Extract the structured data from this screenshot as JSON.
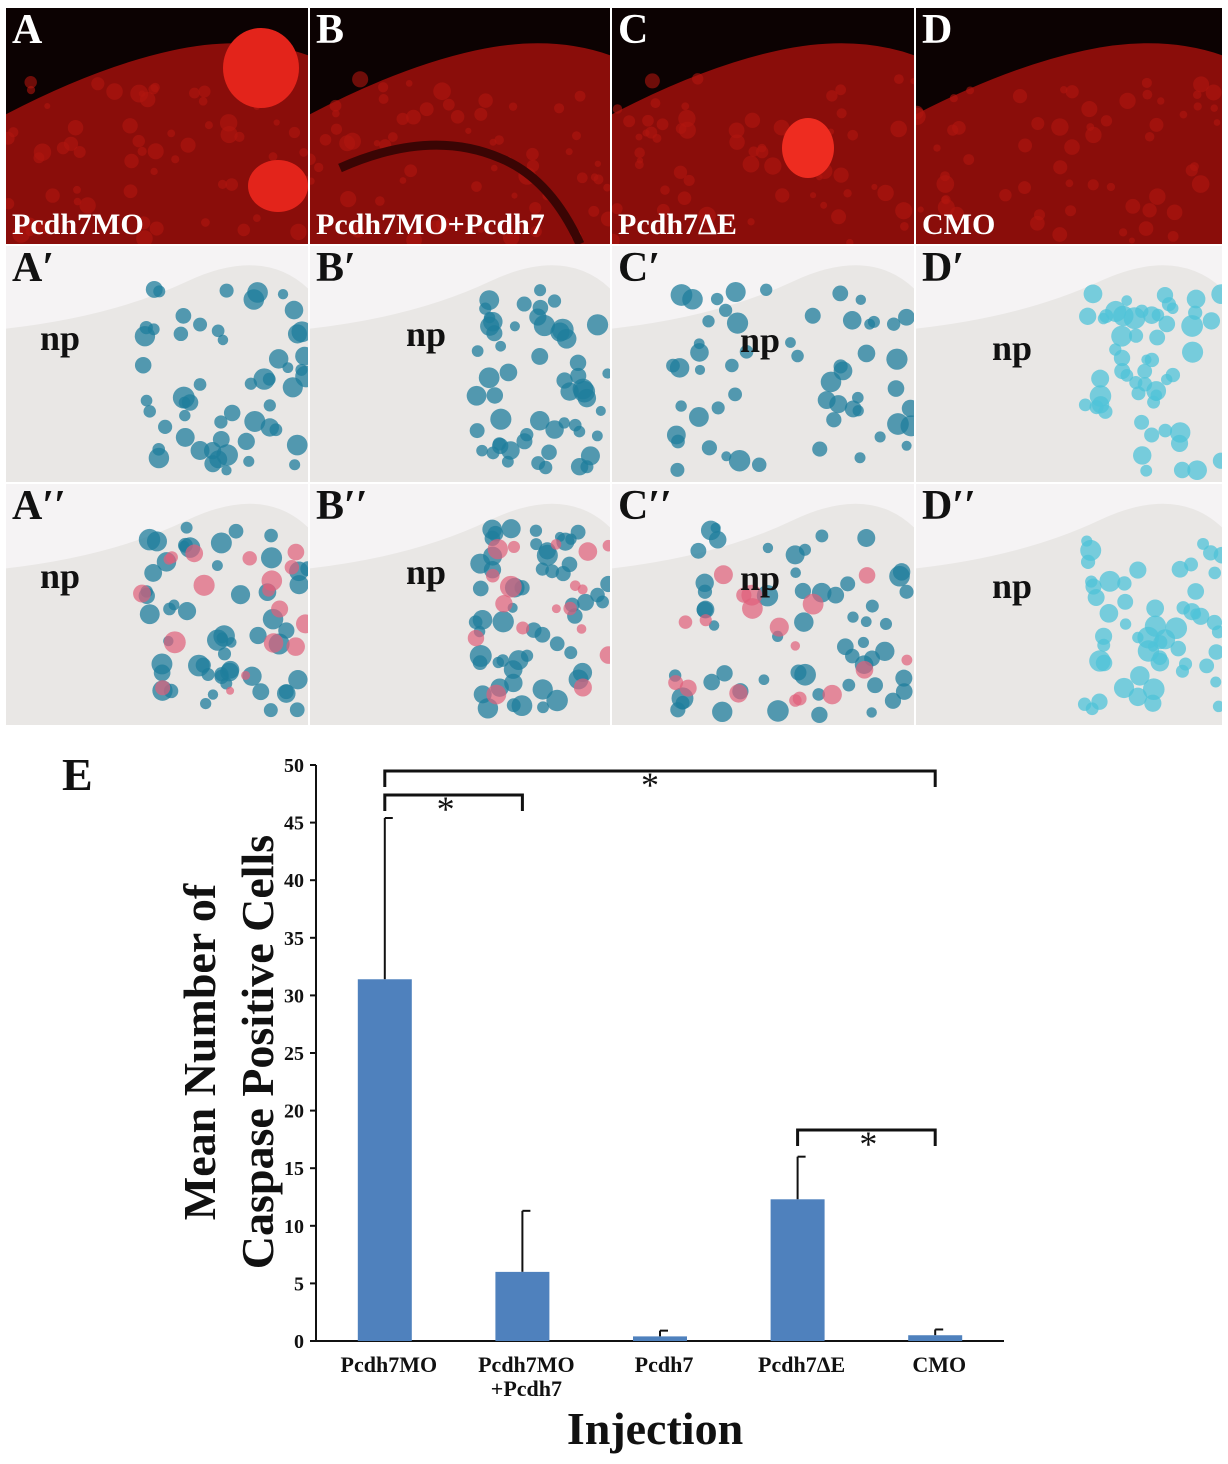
{
  "panels": [
    {
      "id": "A",
      "label": "A",
      "caption": "Pcdh7MO",
      "type": "red"
    },
    {
      "id": "B",
      "label": "B",
      "caption": "Pcdh7MO+Pcdh7",
      "type": "red"
    },
    {
      "id": "C",
      "label": "C",
      "caption": "Pcdh7ΔE",
      "type": "red"
    },
    {
      "id": "D",
      "label": "D",
      "caption": "CMO",
      "type": "red"
    },
    {
      "id": "A1",
      "label": "A′",
      "np": "np",
      "type": "bright"
    },
    {
      "id": "B1",
      "label": "B′",
      "np": "np",
      "type": "bright"
    },
    {
      "id": "C1",
      "label": "C′",
      "np": "np",
      "type": "bright"
    },
    {
      "id": "D1",
      "label": "D′",
      "np": "np",
      "type": "bright"
    },
    {
      "id": "A2",
      "label": "A′′",
      "np": "np",
      "type": "merge"
    },
    {
      "id": "B2",
      "label": "B′′",
      "np": "np",
      "type": "merge"
    },
    {
      "id": "C2",
      "label": "C′′",
      "np": "np",
      "type": "merge"
    },
    {
      "id": "D2",
      "label": "D′′",
      "np": "np",
      "type": "merge"
    }
  ],
  "panel_e_label": "E",
  "chart_data": {
    "type": "bar",
    "categories": [
      "Pcdh7MO",
      "Pcdh7MO\n+Pcdh7",
      "Pcdh7",
      "Pcdh7ΔE",
      "CMO"
    ],
    "values": [
      31.4,
      6.0,
      0.4,
      12.3,
      0.5
    ],
    "errors": [
      14.0,
      5.3,
      0.5,
      3.7,
      0.5
    ],
    "xlabel": "Injection",
    "ylabel": [
      "Mean Number of",
      "Caspase Positive Cells"
    ],
    "ylim": [
      0,
      50
    ],
    "yticks": [
      0,
      5,
      10,
      15,
      20,
      25,
      30,
      35,
      40,
      45,
      50
    ],
    "bar_color": "#4f81bd",
    "significance": [
      {
        "from": 0,
        "to": 1,
        "label": "*"
      },
      {
        "from": 0,
        "to": 4,
        "label": "*"
      },
      {
        "from": 3,
        "to": 4,
        "label": "*"
      }
    ]
  }
}
